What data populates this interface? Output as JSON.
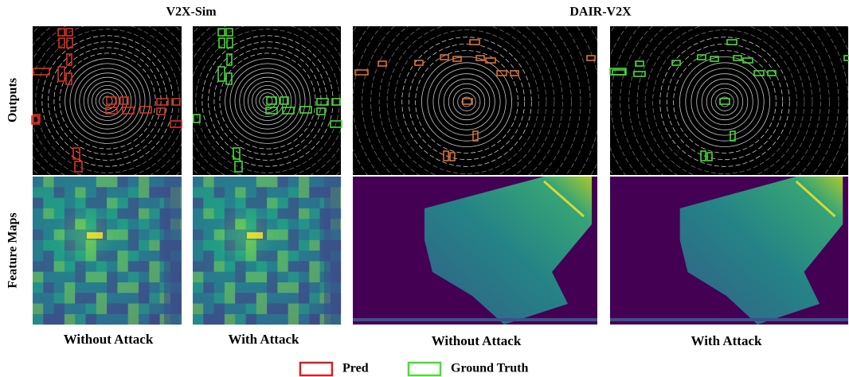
{
  "headers": [
    "V2X-Sim",
    "DAIR-V2X"
  ],
  "row_labels": [
    "Outputs",
    "Feature Maps"
  ],
  "column_labels": [
    "Without Attack",
    "With Attack",
    "Without Attack",
    "With Attack"
  ],
  "legend": [
    "Pred",
    "Ground Truth"
  ]
}
